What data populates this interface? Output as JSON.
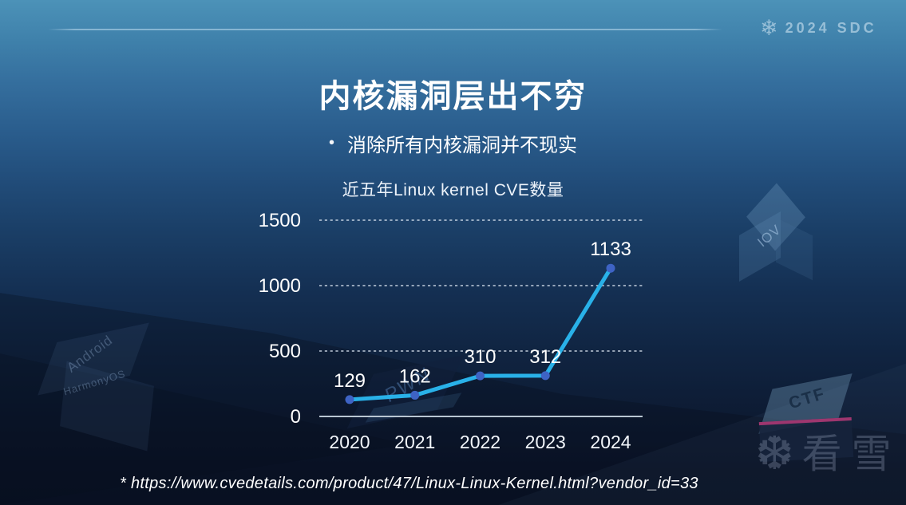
{
  "slide": {
    "title": "内核漏洞层出不穷",
    "bullet_marker": "•",
    "bullet": "消除所有内核漏洞并不现实",
    "footnote": "* https://www.cvedetails.com/product/47/Linux-Linux-Kernel.html?vendor_id=33"
  },
  "header": {
    "brand": "2024 SDC",
    "brand_icon": "snowflake",
    "brand_icon_glyph": "❄"
  },
  "chart_data": {
    "type": "line",
    "title": "近五年Linux kernel CVE数量",
    "categories": [
      "2020",
      "2021",
      "2022",
      "2023",
      "2024"
    ],
    "values": [
      129,
      162,
      310,
      312,
      1133
    ],
    "xlabel": "",
    "ylabel": "",
    "ylim": [
      0,
      1500
    ],
    "yticks": [
      0,
      500,
      1000,
      1500
    ],
    "grid": "horizontal-dashed",
    "legend": "none",
    "line_color": "#29b1e8",
    "marker_color": "#3e63c4",
    "text_color": "#ffffff"
  },
  "decorations": {
    "cube_android_top": "Android",
    "cube_android_front": "HarmonyOS",
    "cube_iov": "IOV",
    "slab_pwn": "PWN",
    "keycap_ctf": "CTF",
    "watermark_icon": "snowflake",
    "watermark_icon_glyph": "❆",
    "watermark_text": "看雪"
  },
  "colors": {
    "bg_top": "#4c92b8",
    "bg_bottom": "#0a1225",
    "accent_line": "#29b1e8",
    "marker": "#3e63c4",
    "brand_text": "#aacbdf",
    "ctf_stripe": "#b63a78"
  }
}
